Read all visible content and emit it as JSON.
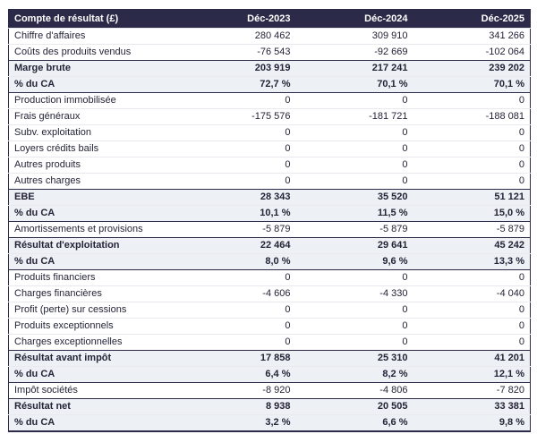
{
  "colors": {
    "header_bg": "#2b2b49",
    "header_text": "#ffffff",
    "subtotal_row_bg": "#edf0f4",
    "body_text": "#242438",
    "section_border": "#2b2b49",
    "row_separator": "#e9e9ef"
  },
  "table": {
    "header": {
      "label": "Compte de résultat (£)",
      "columns": [
        "Déc-2023",
        "Déc-2024",
        "Déc-2025"
      ]
    },
    "rows": [
      {
        "label": "Chiffre d'affaires",
        "values": [
          "280 462",
          "309 910",
          "341 266"
        ],
        "style": "normal",
        "border_top": "light"
      },
      {
        "label": "Coûts des produits vendus",
        "values": [
          "-76 543",
          "-92 669",
          "-102 064"
        ],
        "style": "normal",
        "border_top": "light"
      },
      {
        "label": "Marge brute",
        "values": [
          "203 919",
          "217 241",
          "239 202"
        ],
        "style": "subtotal",
        "border_top": "dark"
      },
      {
        "label": "% du CA",
        "values": [
          "72,7 %",
          "70,1 %",
          "70,1 %"
        ],
        "style": "subtotal",
        "border_top": "light"
      },
      {
        "label": "Production immobilisée",
        "values": [
          "0",
          "0",
          "0"
        ],
        "style": "normal",
        "border_top": "dark"
      },
      {
        "label": "Frais généraux",
        "values": [
          "-175 576",
          "-181 721",
          "-188 081"
        ],
        "style": "normal",
        "border_top": "light"
      },
      {
        "label": "Subv. exploitation",
        "values": [
          "0",
          "0",
          "0"
        ],
        "style": "normal",
        "border_top": "light"
      },
      {
        "label": "Loyers crédits bails",
        "values": [
          "0",
          "0",
          "0"
        ],
        "style": "normal",
        "border_top": "light"
      },
      {
        "label": "Autres produits",
        "values": [
          "0",
          "0",
          "0"
        ],
        "style": "normal",
        "border_top": "light"
      },
      {
        "label": "Autres charges",
        "values": [
          "0",
          "0",
          "0"
        ],
        "style": "normal",
        "border_top": "light"
      },
      {
        "label": "EBE",
        "values": [
          "28 343",
          "35 520",
          "51 121"
        ],
        "style": "subtotal",
        "border_top": "dark"
      },
      {
        "label": "% du CA",
        "values": [
          "10,1 %",
          "11,5 %",
          "15,0 %"
        ],
        "style": "subtotal",
        "border_top": "light"
      },
      {
        "label": "Amortissements et provisions",
        "values": [
          "-5 879",
          "-5 879",
          "-5 879"
        ],
        "style": "normal",
        "border_top": "dark"
      },
      {
        "label": "Résultat d'exploitation",
        "values": [
          "22 464",
          "29 641",
          "45 242"
        ],
        "style": "subtotal",
        "border_top": "dark"
      },
      {
        "label": "% du CA",
        "values": [
          "8,0 %",
          "9,6 %",
          "13,3 %"
        ],
        "style": "subtotal",
        "border_top": "light"
      },
      {
        "label": "Produits financiers",
        "values": [
          "0",
          "0",
          "0"
        ],
        "style": "normal",
        "border_top": "dark"
      },
      {
        "label": "Charges financières",
        "values": [
          "-4 606",
          "-4 330",
          "-4 040"
        ],
        "style": "normal",
        "border_top": "light"
      },
      {
        "label": "Profit (perte) sur cessions",
        "values": [
          "0",
          "0",
          "0"
        ],
        "style": "normal",
        "border_top": "light"
      },
      {
        "label": "Produits exceptionnels",
        "values": [
          "0",
          "0",
          "0"
        ],
        "style": "normal",
        "border_top": "light"
      },
      {
        "label": "Charges exceptionnelles",
        "values": [
          "0",
          "0",
          "0"
        ],
        "style": "normal",
        "border_top": "light"
      },
      {
        "label": "Résultat avant impôt",
        "values": [
          "17 858",
          "25 310",
          "41 201"
        ],
        "style": "subtotal",
        "border_top": "dark"
      },
      {
        "label": "% du CA",
        "values": [
          "6,4 %",
          "8,2 %",
          "12,1 %"
        ],
        "style": "subtotal",
        "border_top": "light"
      },
      {
        "label": "Impôt sociétés",
        "values": [
          "-8 920",
          "-4 806",
          "-7 820"
        ],
        "style": "normal",
        "border_top": "dark"
      },
      {
        "label": "Résultat net",
        "values": [
          "8 938",
          "20 505",
          "33 381"
        ],
        "style": "subtotal",
        "border_top": "dark"
      },
      {
        "label": "% du CA",
        "values": [
          "3,2 %",
          "6,6 %",
          "9,8 %"
        ],
        "style": "subtotal",
        "border_top": "light"
      }
    ]
  }
}
